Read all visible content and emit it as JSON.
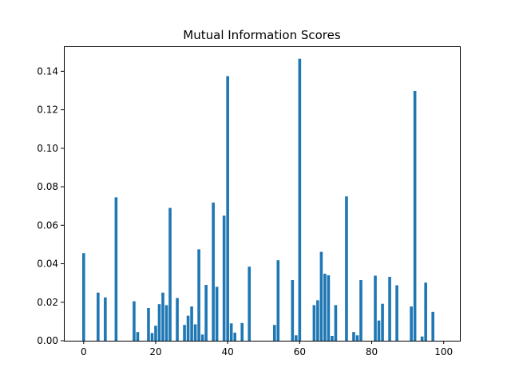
{
  "chart_data": {
    "type": "bar",
    "title": "Mutual Information Scores",
    "xlabel": "",
    "ylabel": "",
    "xlim": [
      -5.5,
      104.5
    ],
    "ylim": [
      0,
      0.153
    ],
    "x_ticks": [
      0,
      20,
      40,
      60,
      80,
      100
    ],
    "y_ticks": [
      0.0,
      0.02,
      0.04,
      0.06,
      0.08,
      0.1,
      0.12,
      0.14
    ],
    "y_tick_labels": [
      "0.00",
      "0.02",
      "0.04",
      "0.06",
      "0.08",
      "0.10",
      "0.12",
      "0.14"
    ],
    "grid": false,
    "bar_color": "#1f77b4",
    "x": [
      0,
      4,
      6,
      9,
      14,
      15,
      18,
      19,
      20,
      21,
      22,
      23,
      24,
      26,
      28,
      29,
      30,
      31,
      32,
      33,
      34,
      36,
      37,
      39,
      40,
      41,
      42,
      44,
      46,
      53,
      54,
      58,
      59,
      60,
      64,
      65,
      66,
      67,
      68,
      69,
      70,
      73,
      75,
      76,
      77,
      81,
      82,
      83,
      85,
      87,
      91,
      92,
      94,
      95,
      97
    ],
    "values": [
      0.0455,
      0.025,
      0.0225,
      0.0745,
      0.0205,
      0.0045,
      0.017,
      0.004,
      0.0078,
      0.019,
      0.025,
      0.0185,
      0.069,
      0.0222,
      0.0082,
      0.013,
      0.0178,
      0.0085,
      0.0475,
      0.0032,
      0.029,
      0.0718,
      0.028,
      0.065,
      0.1375,
      0.009,
      0.0042,
      0.0092,
      0.0385,
      0.0082,
      0.0418,
      0.0315,
      0.0028,
      0.1465,
      0.0185,
      0.021,
      0.0462,
      0.0348,
      0.034,
      0.0025,
      0.0185,
      0.075,
      0.0045,
      0.0028,
      0.0315,
      0.0338,
      0.0105,
      0.0192,
      0.0332,
      0.0288,
      0.0178,
      0.1298,
      0.0022,
      0.0302,
      0.015
    ]
  }
}
